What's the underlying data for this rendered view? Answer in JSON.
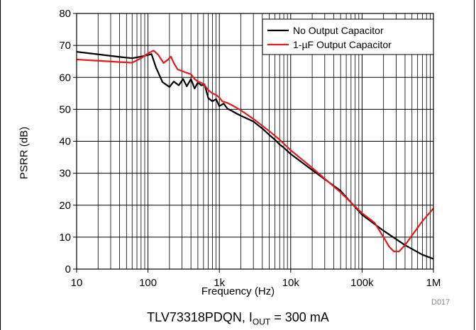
{
  "chart_data": {
    "type": "line",
    "title": "",
    "xlabel": "Frequency (Hz)",
    "ylabel": "PSRR (dB)",
    "x_scale": "log",
    "xlim": [
      10,
      1000000
    ],
    "ylim": [
      0,
      80
    ],
    "x_tick_labels": [
      "10",
      "100",
      "1k",
      "10k",
      "100k",
      "1M"
    ],
    "x_tick_values": [
      10,
      100,
      1000,
      10000,
      100000,
      1000000
    ],
    "y_ticks": [
      0,
      10,
      20,
      30,
      40,
      50,
      60,
      70,
      80
    ],
    "grid": true,
    "legend_position": "top-right",
    "series": [
      {
        "name": "No Output Capacitor",
        "color": "#000000",
        "points": [
          [
            10,
            68
          ],
          [
            20,
            67.2
          ],
          [
            40,
            66.4
          ],
          [
            60,
            66
          ],
          [
            80,
            66.5
          ],
          [
            100,
            67
          ],
          [
            112,
            67.3
          ],
          [
            130,
            63
          ],
          [
            160,
            58.5
          ],
          [
            200,
            57
          ],
          [
            230,
            58.7
          ],
          [
            270,
            57.5
          ],
          [
            310,
            59.5
          ],
          [
            350,
            57.2
          ],
          [
            400,
            59.5
          ],
          [
            450,
            56.5
          ],
          [
            500,
            58.4
          ],
          [
            560,
            57.5
          ],
          [
            620,
            57.8
          ],
          [
            700,
            53.5
          ],
          [
            800,
            52.5
          ],
          [
            900,
            53.2
          ],
          [
            1000,
            51
          ],
          [
            1150,
            51.8
          ],
          [
            1300,
            50.2
          ],
          [
            1500,
            49.5
          ],
          [
            1800,
            48.5
          ],
          [
            2000,
            48
          ],
          [
            2500,
            47
          ],
          [
            3000,
            46.2
          ],
          [
            3500,
            45
          ],
          [
            4000,
            44
          ],
          [
            5000,
            42
          ],
          [
            6000,
            40.5
          ],
          [
            7000,
            39
          ],
          [
            8000,
            38
          ],
          [
            10000,
            36
          ],
          [
            20000,
            31
          ],
          [
            50000,
            24.5
          ],
          [
            100000,
            17
          ],
          [
            200000,
            12
          ],
          [
            400000,
            7.5
          ],
          [
            700000,
            4.5
          ],
          [
            1000000,
            3.2
          ]
        ]
      },
      {
        "name": "1-µF Output Capacitor",
        "color": "#e41a1c",
        "points": [
          [
            10,
            65.6
          ],
          [
            20,
            65.2
          ],
          [
            40,
            64.8
          ],
          [
            60,
            64.6
          ],
          [
            80,
            66
          ],
          [
            100,
            67.5
          ],
          [
            120,
            68.4
          ],
          [
            140,
            67
          ],
          [
            165,
            64.5
          ],
          [
            190,
            65.5
          ],
          [
            210,
            66.5
          ],
          [
            230,
            64.5
          ],
          [
            260,
            62.5
          ],
          [
            300,
            62
          ],
          [
            340,
            61.5
          ],
          [
            400,
            61
          ],
          [
            450,
            59.5
          ],
          [
            500,
            58.7
          ],
          [
            600,
            58
          ],
          [
            700,
            56
          ],
          [
            800,
            55
          ],
          [
            900,
            54.5
          ],
          [
            1000,
            53.7
          ],
          [
            1100,
            52.5
          ],
          [
            1300,
            52
          ],
          [
            1500,
            51.3
          ],
          [
            2000,
            49.7
          ],
          [
            3000,
            47
          ],
          [
            5000,
            43.2
          ],
          [
            7000,
            40.5
          ],
          [
            10000,
            37.2
          ],
          [
            20000,
            31.7
          ],
          [
            50000,
            24
          ],
          [
            100000,
            17.5
          ],
          [
            150000,
            14.5
          ],
          [
            200000,
            10
          ],
          [
            240000,
            7
          ],
          [
            280000,
            5.5
          ],
          [
            330000,
            5.5
          ],
          [
            400000,
            7.5
          ],
          [
            500000,
            10.5
          ],
          [
            700000,
            15
          ],
          [
            1000000,
            19
          ]
        ]
      }
    ]
  },
  "caption": {
    "text": "TLV73318PDQN, I",
    "sub": "OUT",
    "suffix": " = 300 mA"
  },
  "figure_id": "D017"
}
